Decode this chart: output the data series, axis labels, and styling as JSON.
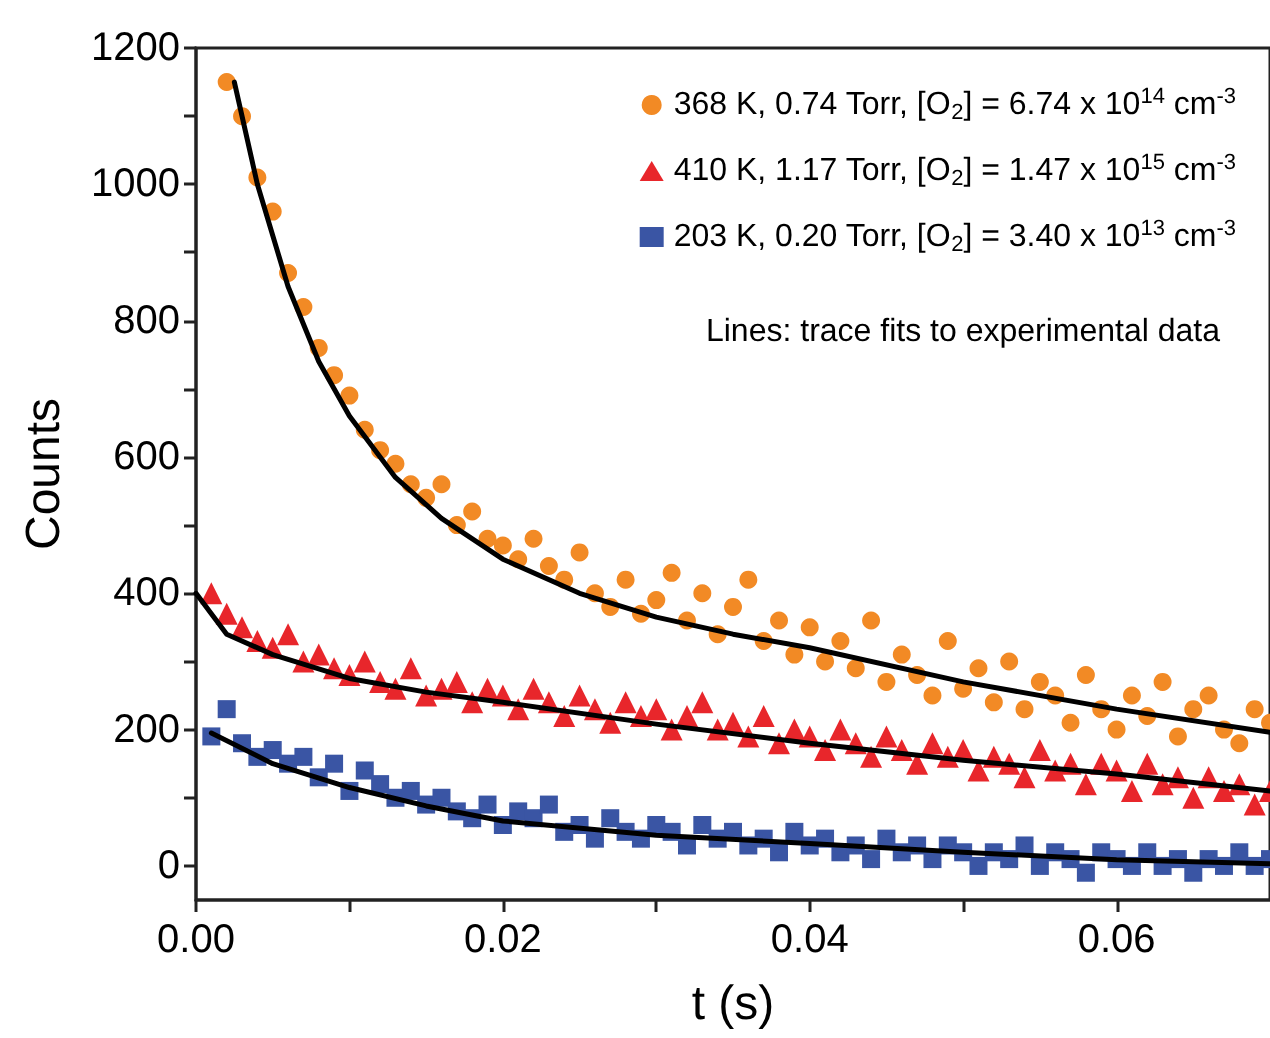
{
  "chart_data": {
    "type": "scatter",
    "xlabel": "t (s)",
    "ylabel": "Counts",
    "xlim": [
      0,
      0.07
    ],
    "ylim": [
      -50,
      1200
    ],
    "xticks": [
      {
        "value": 0,
        "label": "0.00"
      },
      {
        "value": 0.01,
        "label": null
      },
      {
        "value": 0.02,
        "label": "0.02"
      },
      {
        "value": 0.03,
        "label": null
      },
      {
        "value": 0.04,
        "label": "0.04"
      },
      {
        "value": 0.05,
        "label": null
      },
      {
        "value": 0.06,
        "label": "0.06"
      }
    ],
    "yticks": [
      0,
      {
        "value": 100,
        "label": null
      },
      200,
      {
        "value": 300,
        "label": null
      },
      400,
      {
        "value": 500,
        "label": null
      },
      600,
      {
        "value": 700,
        "label": null
      },
      800,
      {
        "value": 900,
        "label": null
      },
      1000,
      {
        "value": 1100,
        "label": null
      },
      1200
    ],
    "legend": "top right",
    "grid": false,
    "annotations": [
      "Lines: trace fits to experimental data"
    ],
    "series": [
      {
        "name": "368 K, 0.74 Torr, [O$_{2}$] = 6.74 x 10$^{14}$ cm$^{-3}$",
        "color": "#f28a25",
        "marker": "circle",
        "x": [
          0.002,
          0.003,
          0.004,
          0.005,
          0.006,
          0.007,
          0.008,
          0.009,
          0.01,
          0.011,
          0.012,
          0.013,
          0.014,
          0.015,
          0.016,
          0.017,
          0.018,
          0.019,
          0.02,
          0.021,
          0.022,
          0.023,
          0.024,
          0.025,
          0.026,
          0.027,
          0.028,
          0.029,
          0.03,
          0.031,
          0.032,
          0.033,
          0.034,
          0.035,
          0.036,
          0.037,
          0.038,
          0.039,
          0.04,
          0.041,
          0.042,
          0.043,
          0.044,
          0.045,
          0.046,
          0.047,
          0.048,
          0.049,
          0.05,
          0.051,
          0.052,
          0.053,
          0.054,
          0.055,
          0.056,
          0.057,
          0.058,
          0.059,
          0.06,
          0.061,
          0.062,
          0.063,
          0.064,
          0.065,
          0.066,
          0.067,
          0.068,
          0.069,
          0.07
        ],
        "values": [
          1150,
          1100,
          1010,
          960,
          870,
          820,
          760,
          720,
          690,
          640,
          610,
          590,
          560,
          540,
          560,
          500,
          520,
          480,
          470,
          450,
          480,
          440,
          420,
          460,
          400,
          380,
          420,
          370,
          390,
          430,
          360,
          400,
          340,
          380,
          420,
          330,
          360,
          310,
          350,
          300,
          330,
          290,
          360,
          270,
          310,
          280,
          250,
          330,
          260,
          290,
          240,
          300,
          230,
          270,
          250,
          210,
          280,
          230,
          200,
          250,
          220,
          270,
          190,
          230,
          250,
          200,
          180,
          230,
          210
        ]
      },
      {
        "name": "410 K, 1.17 Torr, [O$_{2}$] = 1.47 x 10$^{15}$ cm$^{-3}$",
        "color": "#e8262b",
        "marker": "triangle",
        "x": [
          0.001,
          0.002,
          0.003,
          0.004,
          0.005,
          0.006,
          0.007,
          0.008,
          0.009,
          0.01,
          0.011,
          0.012,
          0.013,
          0.014,
          0.015,
          0.016,
          0.017,
          0.018,
          0.019,
          0.02,
          0.021,
          0.022,
          0.023,
          0.024,
          0.025,
          0.026,
          0.027,
          0.028,
          0.029,
          0.03,
          0.031,
          0.032,
          0.033,
          0.034,
          0.035,
          0.036,
          0.037,
          0.038,
          0.039,
          0.04,
          0.041,
          0.042,
          0.043,
          0.044,
          0.045,
          0.046,
          0.047,
          0.048,
          0.049,
          0.05,
          0.051,
          0.052,
          0.053,
          0.054,
          0.055,
          0.056,
          0.057,
          0.058,
          0.059,
          0.06,
          0.061,
          0.062,
          0.063,
          0.064,
          0.065,
          0.066,
          0.067,
          0.068,
          0.069,
          0.07
        ],
        "values": [
          400,
          370,
          350,
          330,
          320,
          340,
          300,
          310,
          290,
          280,
          300,
          270,
          260,
          290,
          250,
          260,
          270,
          240,
          260,
          250,
          230,
          260,
          240,
          220,
          250,
          230,
          210,
          240,
          220,
          230,
          200,
          220,
          240,
          200,
          210,
          190,
          220,
          180,
          200,
          190,
          170,
          200,
          180,
          160,
          190,
          170,
          150,
          180,
          160,
          170,
          140,
          160,
          150,
          130,
          170,
          140,
          150,
          120,
          150,
          140,
          110,
          150,
          120,
          130,
          100,
          130,
          110,
          120,
          90,
          110
        ]
      },
      {
        "name": "203 K, 0.20 Torr, [O$_{2}$] = 3.40 x 10$^{13}$ cm$^{-3}$",
        "color": "#3a55a4",
        "marker": "square",
        "x": [
          0.001,
          0.002,
          0.003,
          0.004,
          0.005,
          0.006,
          0.007,
          0.008,
          0.009,
          0.01,
          0.011,
          0.012,
          0.013,
          0.014,
          0.015,
          0.016,
          0.017,
          0.018,
          0.019,
          0.02,
          0.021,
          0.022,
          0.023,
          0.024,
          0.025,
          0.026,
          0.027,
          0.028,
          0.029,
          0.03,
          0.031,
          0.032,
          0.033,
          0.034,
          0.035,
          0.036,
          0.037,
          0.038,
          0.039,
          0.04,
          0.041,
          0.042,
          0.043,
          0.044,
          0.045,
          0.046,
          0.047,
          0.048,
          0.049,
          0.05,
          0.051,
          0.052,
          0.053,
          0.054,
          0.055,
          0.056,
          0.057,
          0.058,
          0.059,
          0.06,
          0.061,
          0.062,
          0.063,
          0.064,
          0.065,
          0.066,
          0.067,
          0.068,
          0.069,
          0.07
        ],
        "values": [
          190,
          230,
          180,
          160,
          170,
          150,
          160,
          130,
          150,
          110,
          140,
          120,
          100,
          110,
          90,
          100,
          80,
          70,
          90,
          60,
          80,
          70,
          90,
          50,
          60,
          40,
          70,
          50,
          40,
          60,
          50,
          30,
          60,
          40,
          50,
          30,
          40,
          20,
          50,
          30,
          40,
          20,
          30,
          10,
          40,
          20,
          30,
          10,
          30,
          20,
          0,
          20,
          10,
          30,
          0,
          20,
          10,
          -10,
          20,
          10,
          0,
          20,
          0,
          10,
          -10,
          10,
          0,
          20,
          0,
          10
        ]
      },
      {
        "type": "line",
        "color": "#000000",
        "marker": "none",
        "x": [
          0.0025,
          0.004,
          0.006,
          0.008,
          0.01,
          0.013,
          0.016,
          0.02,
          0.025,
          0.03,
          0.035,
          0.04,
          0.05,
          0.06,
          0.07
        ],
        "values": [
          1150,
          1000,
          850,
          740,
          660,
          570,
          510,
          450,
          400,
          365,
          340,
          320,
          270,
          230,
          196
        ]
      },
      {
        "type": "line",
        "color": "#000000",
        "marker": "none",
        "x": [
          0,
          0.002,
          0.005,
          0.01,
          0.015,
          0.02,
          0.03,
          0.04,
          0.05,
          0.06,
          0.07
        ],
        "values": [
          400,
          340,
          310,
          275,
          255,
          240,
          208,
          180,
          155,
          135,
          110
        ]
      },
      {
        "type": "line",
        "color": "#000000",
        "marker": "none",
        "x": [
          0.001,
          0.005,
          0.01,
          0.015,
          0.02,
          0.03,
          0.04,
          0.05,
          0.06,
          0.07
        ],
        "values": [
          195,
          150,
          115,
          88,
          66,
          45,
          33,
          20,
          9,
          3
        ]
      }
    ]
  }
}
